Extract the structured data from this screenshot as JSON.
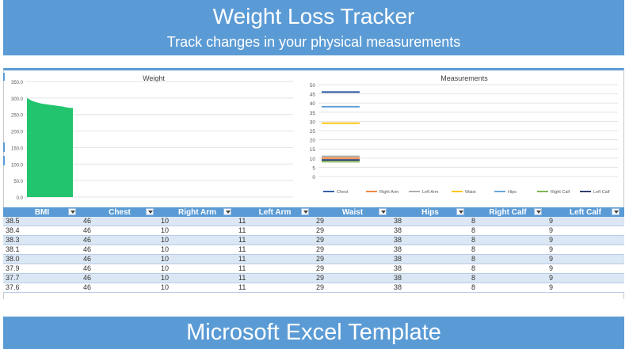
{
  "header": {
    "title": "Weight Loss Tracker",
    "subtitle": "Track changes in your physical measurements"
  },
  "footer": {
    "label": "Microsoft Excel Template"
  },
  "colors": {
    "accent": "#5b9bd5",
    "weight_fill": "#22c46e"
  },
  "chart_data": [
    {
      "type": "area",
      "title": "Weight",
      "ylim": [
        0,
        350
      ],
      "yticks": [
        "0.0",
        "50.0",
        "100.0",
        "150.0",
        "200.0",
        "250.0",
        "300.0",
        "350.0"
      ],
      "x": [
        1,
        2,
        3,
        4,
        5,
        6,
        7,
        8,
        9,
        10,
        11,
        12,
        13,
        14,
        15,
        16,
        17,
        18,
        19,
        20
      ],
      "series": [
        {
          "values": [
            300,
            296,
            292,
            289,
            287,
            285,
            283,
            282,
            281,
            280,
            279,
            278,
            277,
            276,
            275,
            274,
            272,
            271,
            270,
            270
          ]
        }
      ],
      "grid": true
    },
    {
      "type": "line",
      "title": "Measurements",
      "ylim": [
        0,
        50
      ],
      "yticks": [
        "0",
        "5",
        "10",
        "15",
        "20",
        "25",
        "30",
        "35",
        "40",
        "45",
        "50"
      ],
      "legend_position": "bottom",
      "series": [
        {
          "name": "Chest",
          "color": "#1f4e9c",
          "values": [
            46,
            46,
            46,
            46,
            46,
            46,
            46,
            46
          ]
        },
        {
          "name": "Right Arm",
          "color": "#ed7d31",
          "values": [
            10,
            10,
            10,
            10,
            10,
            10,
            10,
            10
          ]
        },
        {
          "name": "Left Arm",
          "color": "#a5a5a5",
          "values": [
            11,
            11,
            11,
            11,
            11,
            11,
            11,
            11
          ]
        },
        {
          "name": "Waist",
          "color": "#ffc000",
          "values": [
            29,
            29,
            29,
            29,
            29,
            29,
            29,
            29
          ]
        },
        {
          "name": "Hips",
          "color": "#5b9bd5",
          "values": [
            38,
            38,
            38,
            38,
            38,
            38,
            38,
            38
          ]
        },
        {
          "name": "Right Calf",
          "color": "#70ad47",
          "values": [
            8,
            8,
            8,
            8,
            8,
            8,
            8,
            8
          ]
        },
        {
          "name": "Left Calf",
          "color": "#1b2a5e",
          "values": [
            9,
            9,
            9,
            9,
            9,
            9,
            9,
            9
          ]
        }
      ],
      "grid": true
    }
  ],
  "table": {
    "columns": [
      "BMI",
      "Chest",
      "Right Arm",
      "Left Arm",
      "Waist",
      "Hips",
      "Right Calf",
      "Left Calf"
    ],
    "rows": [
      [
        "38.5",
        "46",
        "10",
        "11",
        "29",
        "38",
        "8",
        "9"
      ],
      [
        "38.4",
        "46",
        "10",
        "11",
        "29",
        "38",
        "8",
        "9"
      ],
      [
        "38.3",
        "46",
        "10",
        "11",
        "29",
        "38",
        "8",
        "9"
      ],
      [
        "38.1",
        "46",
        "10",
        "11",
        "29",
        "38",
        "8",
        "9"
      ],
      [
        "38.0",
        "46",
        "10",
        "11",
        "29",
        "38",
        "8",
        "9"
      ],
      [
        "37.9",
        "46",
        "10",
        "11",
        "29",
        "38",
        "8",
        "9"
      ],
      [
        "37.7",
        "46",
        "10",
        "11",
        "29",
        "38",
        "8",
        "9"
      ],
      [
        "37.6",
        "46",
        "10",
        "11",
        "29",
        "38",
        "8",
        "9"
      ]
    ]
  }
}
